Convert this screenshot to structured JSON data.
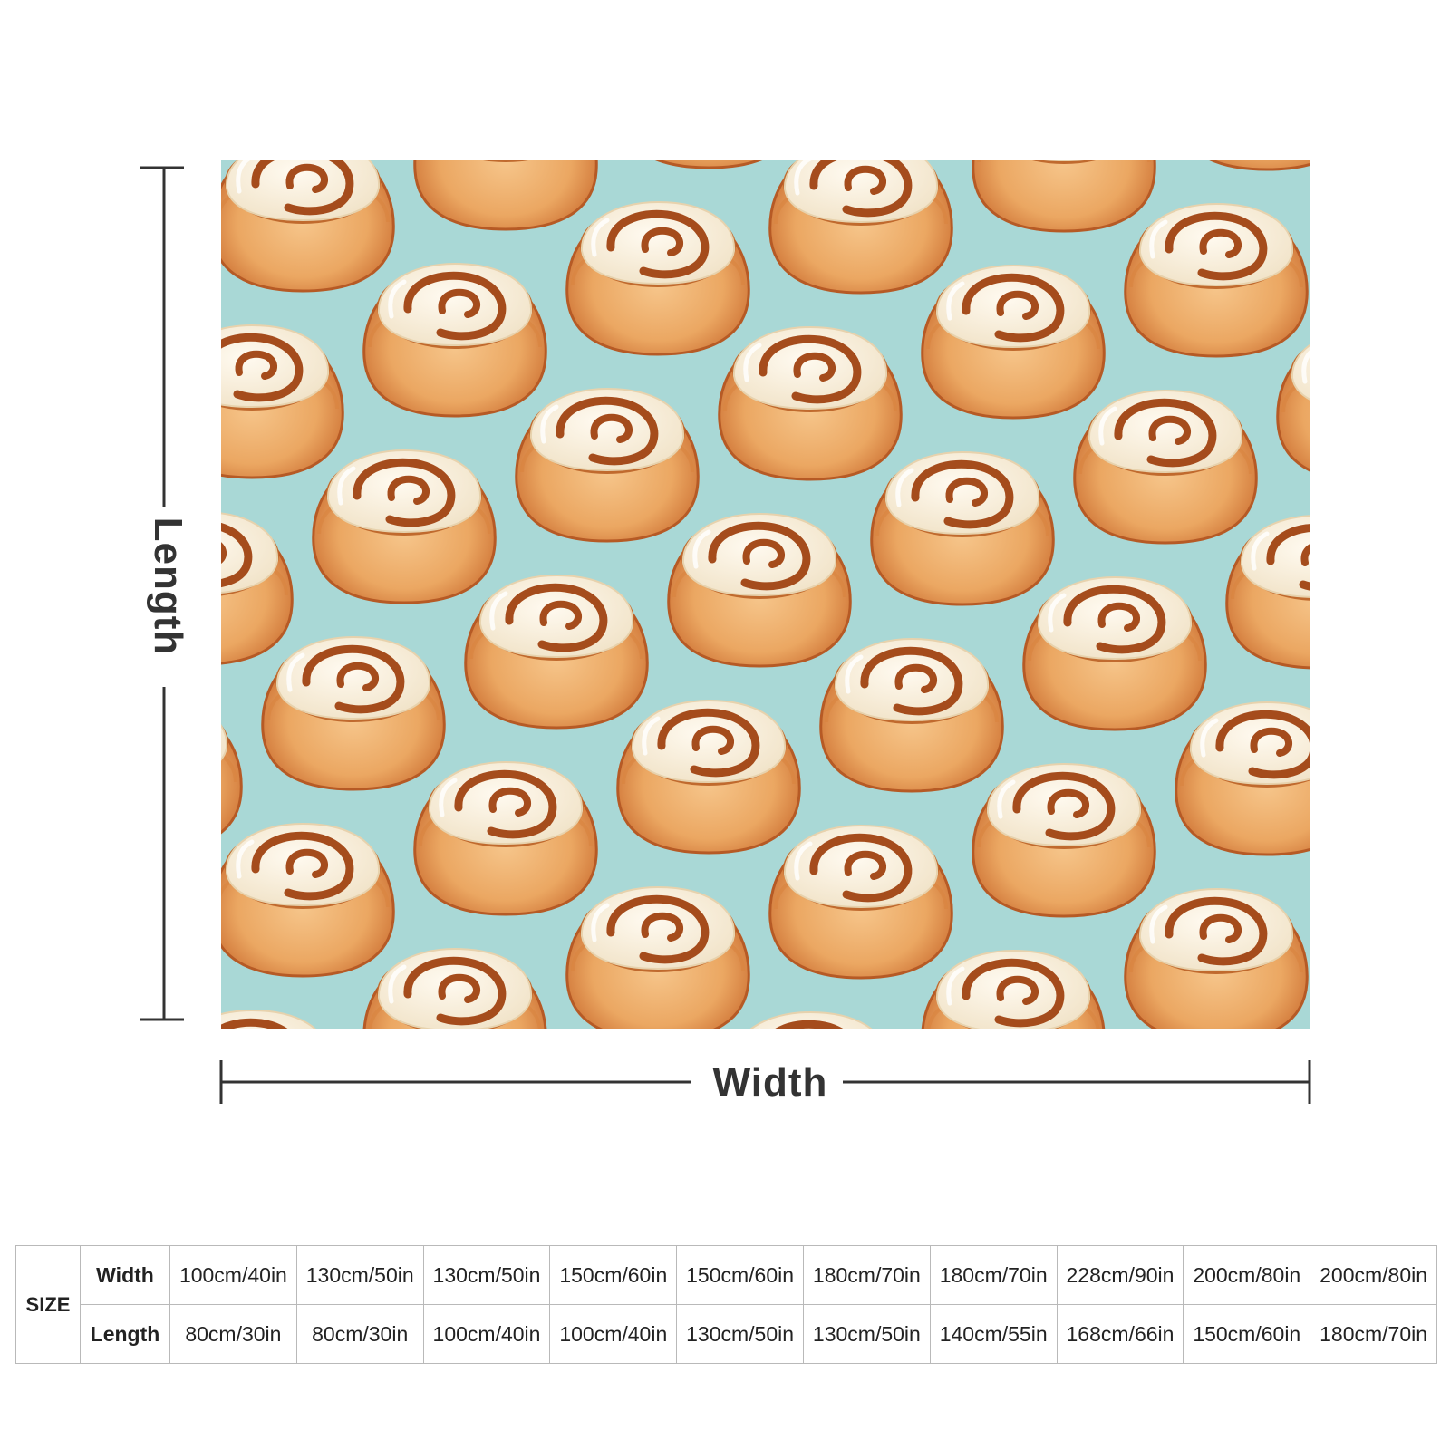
{
  "product": {
    "pattern": "cinnamon rolls on mint blue",
    "colors": {
      "background": "#a9d8d6",
      "bun_light": "#f2b877",
      "bun_dark": "#c8682c",
      "icing": "#fbf3e3",
      "swirl": "#a54c1c",
      "dimension_line": "#333333"
    }
  },
  "dimensions": {
    "width_label": "Width",
    "length_label": "Length"
  },
  "size_table": {
    "size_label": "SIZE",
    "width_label": "Width",
    "length_label": "Length",
    "widths": [
      "100cm/40in",
      "130cm/50in",
      "130cm/50in",
      "150cm/60in",
      "150cm/60in",
      "180cm/70in",
      "180cm/70in",
      "228cm/90in",
      "200cm/80in",
      "200cm/80in"
    ],
    "lengths": [
      "80cm/30in",
      "80cm/30in",
      "100cm/40in",
      "100cm/40in",
      "130cm/50in",
      "130cm/50in",
      "140cm/55in",
      "168cm/66in",
      "150cm/60in",
      "180cm/70in"
    ]
  }
}
